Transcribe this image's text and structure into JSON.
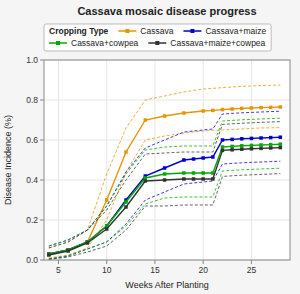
{
  "chart_data": {
    "type": "line",
    "title": "Cassava mosaic disease progress",
    "xlabel": "Weeks After Planting",
    "ylabel": "Disease Incidence (%)",
    "legend_title": "Cropping Type",
    "legend": "top",
    "grid": true,
    "marker": "square",
    "xlim": [
      3.5,
      29
    ],
    "ylim": [
      0.0,
      1.0
    ],
    "xticks": [
      5,
      10,
      15,
      20,
      25
    ],
    "yticks": [
      {
        "value": 0.0,
        "label": "0.0"
      },
      0.2,
      0.4,
      0.6,
      0.8,
      {
        "value": 1.0,
        "label": "1.0"
      }
    ],
    "series": [
      {
        "name": "Cassava",
        "color": "#E69500",
        "x": [
          4,
          6,
          8,
          10,
          12,
          14,
          16,
          18,
          20,
          21,
          22,
          23,
          24,
          25,
          26,
          27,
          28
        ],
        "values": [
          0.03,
          0.05,
          0.09,
          0.3,
          0.54,
          0.7,
          0.72,
          0.735,
          0.745,
          0.748,
          0.752,
          0.755,
          0.758,
          0.76,
          0.762,
          0.763,
          0.765
        ],
        "ci_lower": [
          0.01,
          0.025,
          0.06,
          0.2,
          0.44,
          0.6,
          0.62,
          0.635,
          0.645,
          0.648,
          0.65,
          0.653,
          0.655,
          0.658,
          0.66,
          0.661,
          0.662
        ],
        "ci_upper": [
          0.06,
          0.09,
          0.15,
          0.43,
          0.66,
          0.8,
          0.82,
          0.84,
          0.855,
          0.858,
          0.862,
          0.865,
          0.868,
          0.87,
          0.872,
          0.873,
          0.875
        ]
      },
      {
        "name": "Cassava+maize",
        "color": "#0000CC",
        "x": [
          4,
          6,
          8,
          10,
          12,
          14,
          16,
          18,
          19,
          20,
          21,
          22,
          23,
          24,
          25,
          26,
          27,
          28
        ],
        "values": [
          0.03,
          0.05,
          0.09,
          0.17,
          0.3,
          0.42,
          0.46,
          0.5,
          0.505,
          0.51,
          0.515,
          0.6,
          0.603,
          0.606,
          0.608,
          0.61,
          0.612,
          0.614
        ],
        "ci_lower": [
          0.005,
          0.02,
          0.055,
          0.09,
          0.18,
          0.3,
          0.34,
          0.38,
          0.385,
          0.39,
          0.395,
          0.48,
          0.483,
          0.486,
          0.488,
          0.49,
          0.492,
          0.494
        ],
        "ci_upper": [
          0.07,
          0.1,
          0.15,
          0.27,
          0.44,
          0.56,
          0.6,
          0.64,
          0.645,
          0.65,
          0.655,
          0.73,
          0.733,
          0.736,
          0.738,
          0.74,
          0.742,
          0.744
        ]
      },
      {
        "name": "Cassava+cowpea",
        "color": "#00AA00",
        "x": [
          4,
          6,
          8,
          10,
          12,
          14,
          16,
          18,
          19,
          20,
          21,
          22,
          23,
          24,
          25,
          26,
          27,
          28
        ],
        "values": [
          0.03,
          0.05,
          0.09,
          0.17,
          0.29,
          0.41,
          0.43,
          0.435,
          0.435,
          0.435,
          0.435,
          0.565,
          0.568,
          0.571,
          0.573,
          0.575,
          0.577,
          0.579
        ],
        "ci_lower": [
          0.005,
          0.02,
          0.055,
          0.09,
          0.17,
          0.28,
          0.31,
          0.315,
          0.315,
          0.315,
          0.315,
          0.445,
          0.448,
          0.451,
          0.453,
          0.455,
          0.457,
          0.459
        ],
        "ci_upper": [
          0.07,
          0.1,
          0.15,
          0.27,
          0.43,
          0.55,
          0.565,
          0.57,
          0.57,
          0.57,
          0.57,
          0.695,
          0.698,
          0.701,
          0.703,
          0.705,
          0.707,
          0.709
        ]
      },
      {
        "name": "Cassava+maize+cowpea",
        "color": "#333333",
        "x": [
          4,
          6,
          8,
          10,
          12,
          14,
          16,
          18,
          19,
          20,
          21,
          22,
          23,
          24,
          25,
          26,
          27,
          28
        ],
        "values": [
          0.025,
          0.045,
          0.085,
          0.155,
          0.265,
          0.395,
          0.4,
          0.405,
          0.405,
          0.405,
          0.405,
          0.548,
          0.551,
          0.554,
          0.556,
          0.558,
          0.56,
          0.562
        ],
        "ci_lower": [
          0.003,
          0.015,
          0.04,
          0.07,
          0.15,
          0.27,
          0.27,
          0.275,
          0.275,
          0.275,
          0.275,
          0.418,
          0.421,
          0.424,
          0.426,
          0.428,
          0.43,
          0.432
        ],
        "ci_upper": [
          0.06,
          0.09,
          0.15,
          0.25,
          0.4,
          0.53,
          0.535,
          0.54,
          0.54,
          0.54,
          0.54,
          0.678,
          0.681,
          0.684,
          0.686,
          0.688,
          0.69,
          0.692
        ]
      }
    ]
  }
}
